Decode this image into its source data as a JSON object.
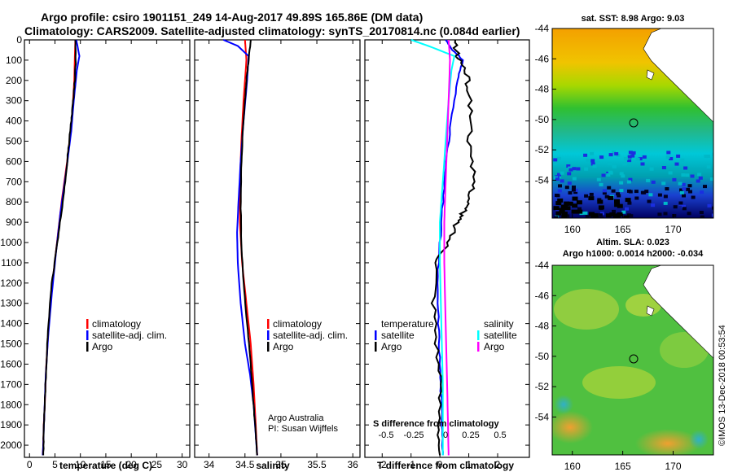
{
  "header": {
    "line1": "Argo profile: csiro 1901151_249 14-Aug-2017 49.89S 165.86E (DM data)",
    "line2": "Climatology: CARS2009. Satellite-adjusted climatology: synTS_20170814.nc (0.084d earlier)"
  },
  "footer": {
    "argo_australia": "Argo Australia",
    "pi": "PI: Susan Wijffels",
    "imos": "©IMOS 13-Dec-2018 00:53:54"
  },
  "colors": {
    "climatology": "#ff0000",
    "satellite": "#0000ff",
    "argo": "#000000",
    "sat_salinity": "#00ffff",
    "argo_salinity": "#ff00ff"
  },
  "chart_data": [
    {
      "type": "line",
      "id": "temperature",
      "xlabel": "temperature (deg C)",
      "xlim": [
        -1,
        31.5
      ],
      "xticks": [
        0,
        5,
        10,
        15,
        20,
        25,
        30
      ],
      "ylim": [
        2060,
        0
      ],
      "yticks": [
        0,
        100,
        200,
        300,
        400,
        500,
        600,
        700,
        800,
        900,
        1000,
        1100,
        1200,
        1300,
        1400,
        1500,
        1600,
        1700,
        1800,
        1900,
        2000
      ],
      "legend": [
        "climatology",
        "satellite-adj. clim.",
        "Argo"
      ],
      "series": [
        {
          "name": "climatology",
          "x": [
            9.0,
            8.8,
            8.3,
            7.4,
            6.3,
            5.4,
            4.5,
            3.8,
            3.3,
            3.0,
            2.8,
            2.7,
            2.6
          ],
          "y": [
            0,
            200,
            400,
            600,
            800,
            1000,
            1200,
            1400,
            1600,
            1800,
            1900,
            2000,
            2050
          ]
        },
        {
          "name": "satellite-adj. clim.",
          "x": [
            9.2,
            9.8,
            9.3,
            8.7,
            8.2,
            7.2,
            6.1,
            5.2,
            4.4,
            3.7,
            3.2,
            2.9,
            2.7,
            2.6
          ],
          "y": [
            0,
            80,
            150,
            300,
            450,
            650,
            850,
            1050,
            1250,
            1450,
            1650,
            1850,
            2000,
            2050
          ]
        },
        {
          "name": "Argo",
          "x": [
            9.0,
            9.1,
            8.9,
            8.6,
            8.2,
            7.8,
            7.4,
            6.8,
            6.0,
            5.2,
            4.4,
            3.7,
            3.3,
            3.0,
            2.8,
            2.7
          ],
          "y": [
            0,
            100,
            200,
            300,
            400,
            500,
            600,
            750,
            900,
            1050,
            1200,
            1400,
            1600,
            1800,
            1950,
            2050
          ]
        }
      ]
    },
    {
      "type": "line",
      "id": "salinity",
      "xlabel": "salinity",
      "xlim": [
        33.8,
        36.1
      ],
      "xticks": [
        34,
        34.5,
        35,
        35.5,
        36
      ],
      "ylim": [
        2060,
        0
      ],
      "legend": [
        "climatology",
        "satellite-adj. clim.",
        "Argo"
      ],
      "series": [
        {
          "name": "climatology",
          "x": [
            34.5,
            34.52,
            34.48,
            34.45,
            34.43,
            34.43,
            34.46,
            34.52,
            34.58,
            34.62,
            34.65,
            34.67
          ],
          "y": [
            0,
            100,
            300,
            500,
            700,
            900,
            1100,
            1300,
            1500,
            1700,
            1900,
            2050
          ]
        },
        {
          "name": "satellite-adj. clim.",
          "x": [
            34.2,
            34.4,
            34.55,
            34.53,
            34.48,
            34.44,
            34.41,
            34.39,
            34.4,
            34.44,
            34.5,
            34.57,
            34.62,
            34.65,
            34.67
          ],
          "y": [
            0,
            30,
            80,
            200,
            400,
            600,
            800,
            950,
            1100,
            1300,
            1500,
            1650,
            1800,
            1950,
            2050
          ]
        },
        {
          "name": "Argo",
          "x": [
            34.58,
            34.55,
            34.52,
            34.5,
            34.47,
            34.45,
            34.44,
            34.45,
            34.48,
            34.53,
            34.58,
            34.62,
            34.65,
            34.67
          ],
          "y": [
            0,
            100,
            200,
            300,
            450,
            600,
            800,
            1000,
            1200,
            1400,
            1600,
            1800,
            1950,
            2050
          ]
        }
      ]
    },
    {
      "type": "line",
      "id": "difference",
      "xlabel": "T difference from climatology",
      "xlim": [
        -2.6,
        3.1
      ],
      "xticks": [
        -2,
        -1,
        0,
        1,
        2
      ],
      "s_label": "S difference from climatology",
      "s_ticks": [
        "-0.5",
        "-0.25",
        "0",
        "0.25",
        "0.5"
      ],
      "ylim": [
        2060,
        0
      ],
      "legend_temperature": {
        "title": "temperature",
        "items": [
          "satellite",
          "Argo"
        ]
      },
      "legend_salinity": {
        "title": "salinity",
        "items": [
          "satellite",
          "Argo"
        ]
      },
      "series": [
        {
          "name": "T satellite",
          "x": [
            0.2,
            0.5,
            0.8,
            0.6,
            0.4,
            0.2,
            0.1,
            0.0,
            -0.1,
            -0.05,
            0.0,
            0.05,
            0.1,
            0.1
          ],
          "y": [
            0,
            60,
            100,
            200,
            400,
            600,
            800,
            1000,
            1200,
            1400,
            1600,
            1800,
            1950,
            2050
          ]
        },
        {
          "name": "T Argo",
          "x": [
            0.5,
            0.6,
            0.9,
            1.0,
            1.1,
            1.0,
            1.2,
            1.0,
            0.8,
            0.6,
            0.3,
            -0.1,
            -0.2,
            -0.1,
            0.0,
            0.0,
            0.0
          ],
          "y": [
            0,
            80,
            150,
            250,
            400,
            550,
            700,
            800,
            850,
            900,
            1000,
            1100,
            1300,
            1500,
            1700,
            1900,
            2050
          ]
        },
        {
          "name": "S satellite",
          "x": [
            -1.0,
            -0.4,
            0.5,
            0.4,
            0.3,
            0.2,
            0.1,
            0.0,
            0.0,
            0.05,
            0.1,
            0.1
          ],
          "y": [
            0,
            30,
            80,
            150,
            300,
            500,
            700,
            900,
            1100,
            1400,
            1700,
            2050
          ]
        },
        {
          "name": "S Argo",
          "x": [
            0.3,
            0.35,
            0.3,
            0.25,
            0.2,
            0.15,
            0.15,
            0.2,
            0.25,
            0.28,
            0.3
          ],
          "y": [
            0,
            100,
            300,
            500,
            700,
            900,
            1100,
            1400,
            1700,
            1900,
            2050
          ]
        }
      ]
    },
    {
      "type": "heatmap",
      "id": "sst_map",
      "title": "sat. SST: 8.98 Argo: 9.03",
      "xticks": [
        160,
        165,
        170
      ],
      "yticks": [
        -44,
        -46,
        -48,
        -50,
        -52,
        -54
      ],
      "marker": {
        "lon": 165.86,
        "lat": -49.89
      }
    },
    {
      "type": "heatmap",
      "id": "sla_map",
      "title_line1": "Altim. SLA: 0.023",
      "title_line2": "Argo h1000: 0.0014 h2000: -0.034",
      "xticks": [
        160,
        165,
        170
      ],
      "yticks": [
        -44,
        -46,
        -48,
        -50,
        -52,
        -54
      ],
      "marker": {
        "lon": 165.86,
        "lat": -49.89
      }
    }
  ]
}
